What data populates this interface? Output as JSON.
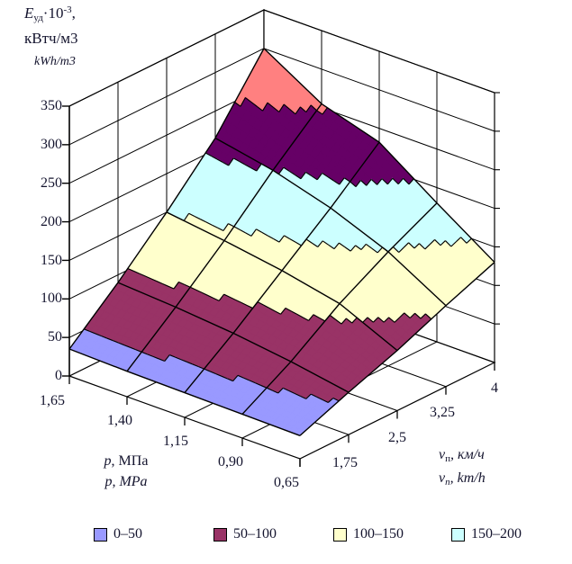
{
  "title": {
    "symbol": "E",
    "symbol_sub": "уд",
    "factor": "·10",
    "factor_exp": "-3",
    "comma": ",",
    "unit_ru": "кВтч/м3",
    "unit_en": "kWh/m3"
  },
  "axes": {
    "e_ticks": [
      "0",
      "50",
      "100",
      "150",
      "200",
      "250",
      "300",
      "350"
    ],
    "p_ticks": [
      "1,65",
      "1,40",
      "1,15",
      "0,90",
      "0,65"
    ],
    "v_ticks": [
      "1,75",
      "2,5",
      "3,25",
      "4"
    ],
    "p_symbol": "p",
    "p_unit_ru": ", МПа",
    "p_unit_en": ", MPa",
    "v_symbol": "v",
    "v_symbol_sub": "п",
    "v_unit_ru": ", км/ч",
    "v_unit_en": ", km/h"
  },
  "chart_data": {
    "type": "surface",
    "title": "Eуд·10-3, кВтч/м3 / kWh/m3",
    "xlabel_ru": "p, МПа",
    "xlabel_en": "p, MPa",
    "ylabel_ru": "vп, км/ч",
    "ylabel_en": "vп, km/h",
    "zlabel": "Eуд·10-3, кВтч/м3",
    "z_range": [
      0,
      350
    ],
    "z_tick_step": 50,
    "p_categories": [
      "1,65",
      "1,40",
      "1,15",
      "0,90",
      "0,65"
    ],
    "v_positions": [
      "",
      "1,75",
      "2,5",
      "3,25",
      "4"
    ],
    "z_grid": [
      [
        35,
        90,
        150,
        215,
        300
      ],
      [
        33,
        85,
        140,
        200,
        255
      ],
      [
        32,
        78,
        128,
        178,
        232
      ],
      [
        31,
        68,
        112,
        148,
        180
      ],
      [
        30,
        55,
        78,
        105,
        130
      ]
    ],
    "band_thresholds": [
      50,
      100,
      150,
      200,
      250,
      300
    ],
    "band_colors": [
      "#9999FF",
      "#993366",
      "#FFFFCC",
      "#CCFFFF",
      "#660066",
      "#FF8080"
    ],
    "grid_color": "#000000",
    "wall_color": "#ffffff",
    "legend": [
      {
        "label": "0–50",
        "color": "#9999FF"
      },
      {
        "label": "50–100",
        "color": "#993366"
      },
      {
        "label": "100–150",
        "color": "#FFFFCC"
      },
      {
        "label": "150–200",
        "color": "#CCFFFF"
      }
    ]
  }
}
